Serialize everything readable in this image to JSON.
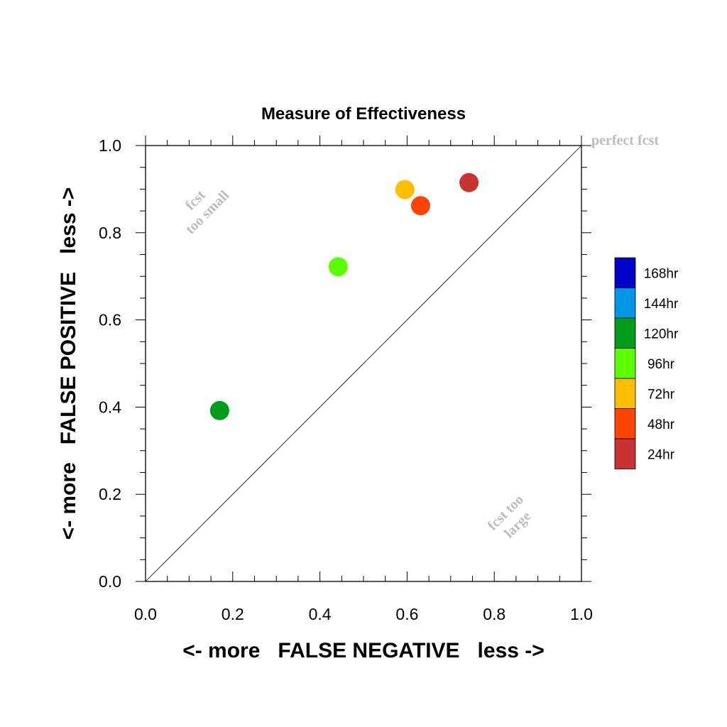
{
  "chart_data": {
    "type": "scatter",
    "title": "Measure of Effectiveness",
    "xlabel": "<- more   FALSE NEGATIVE   less ->",
    "ylabel": "<- more   FALSE POSITIVE   less ->",
    "xlim": [
      0.0,
      1.0
    ],
    "ylim": [
      0.0,
      1.0
    ],
    "x_ticks": [
      "0.0",
      "0.2",
      "0.4",
      "0.6",
      "0.8",
      "1.0"
    ],
    "y_ticks": [
      "0.0",
      "0.2",
      "0.4",
      "0.6",
      "0.8",
      "1.0"
    ],
    "grid": false,
    "reference_line": {
      "from": [
        0.0,
        0.0
      ],
      "to": [
        1.0,
        1.0
      ]
    },
    "points": [
      {
        "label": "24hr",
        "x": 0.742,
        "y": 0.915,
        "color": "#c83232"
      },
      {
        "label": "48hr",
        "x": 0.631,
        "y": 0.862,
        "color": "#ff4400"
      },
      {
        "label": "72hr",
        "x": 0.595,
        "y": 0.899,
        "color": "#ffbf00"
      },
      {
        "label": "96hr",
        "x": 0.442,
        "y": 0.722,
        "color": "#5aff00"
      },
      {
        "label": "120hr",
        "x": 0.17,
        "y": 0.392,
        "color": "#009c1a"
      }
    ],
    "annotations": [
      {
        "lines": [
          "fcst",
          "too small"
        ]
      },
      {
        "lines": [
          "fcst too",
          "large"
        ]
      },
      {
        "lines": [
          "perfect fcst"
        ]
      }
    ],
    "legend": {
      "position": "right",
      "entries": [
        {
          "label": "168hr",
          "color": "#0000c8"
        },
        {
          "label": "144hr",
          "color": "#0096e6"
        },
        {
          "label": "120hr",
          "color": "#009c1a"
        },
        {
          "label": "96hr",
          "color": "#5aff00"
        },
        {
          "label": "72hr",
          "color": "#ffbf00"
        },
        {
          "label": "48hr",
          "color": "#ff4400"
        },
        {
          "label": "24hr",
          "color": "#c83232"
        }
      ]
    }
  }
}
